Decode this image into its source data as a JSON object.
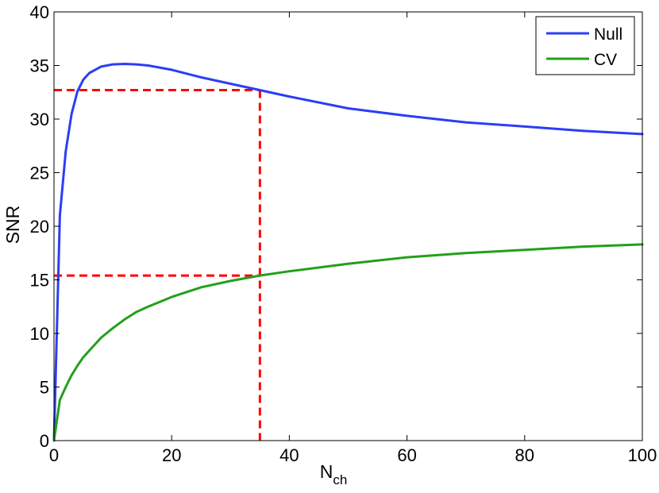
{
  "chart_data": {
    "type": "line",
    "xlabel": "N",
    "xlabel_sub": "ch",
    "ylabel": "SNR",
    "xlim": [
      0,
      100
    ],
    "ylim": [
      0,
      40
    ],
    "xticks": [
      0,
      20,
      40,
      60,
      80,
      100
    ],
    "yticks": [
      0,
      5,
      10,
      15,
      20,
      25,
      30,
      35,
      40
    ],
    "grid": false,
    "legend_position": "top-right",
    "series": [
      {
        "name": "Null",
        "color": "#2b3ef5",
        "x": [
          0,
          1,
          2,
          3,
          4,
          5,
          6,
          8,
          10,
          12,
          14,
          16,
          20,
          25,
          30,
          35,
          40,
          50,
          60,
          70,
          80,
          90,
          100
        ],
        "y": [
          0,
          21.0,
          27.0,
          30.5,
          32.6,
          33.7,
          34.3,
          34.9,
          35.1,
          35.15,
          35.1,
          35.0,
          34.6,
          33.9,
          33.3,
          32.7,
          32.1,
          31.0,
          30.3,
          29.7,
          29.3,
          28.9,
          28.6
        ]
      },
      {
        "name": "CV",
        "color": "#22a01a",
        "x": [
          0,
          1,
          2,
          3,
          4,
          5,
          6,
          8,
          10,
          12,
          14,
          16,
          20,
          25,
          30,
          35,
          40,
          50,
          60,
          70,
          80,
          90,
          100
        ],
        "y": [
          0,
          3.8,
          5.0,
          6.1,
          7.0,
          7.8,
          8.4,
          9.6,
          10.5,
          11.3,
          12.0,
          12.5,
          13.4,
          14.3,
          14.9,
          15.4,
          15.8,
          16.5,
          17.1,
          17.5,
          17.8,
          18.1,
          18.3
        ]
      }
    ],
    "reference_lines": {
      "color": "#ff0000",
      "x": 35,
      "y_values": [
        32.7,
        15.4
      ]
    }
  }
}
